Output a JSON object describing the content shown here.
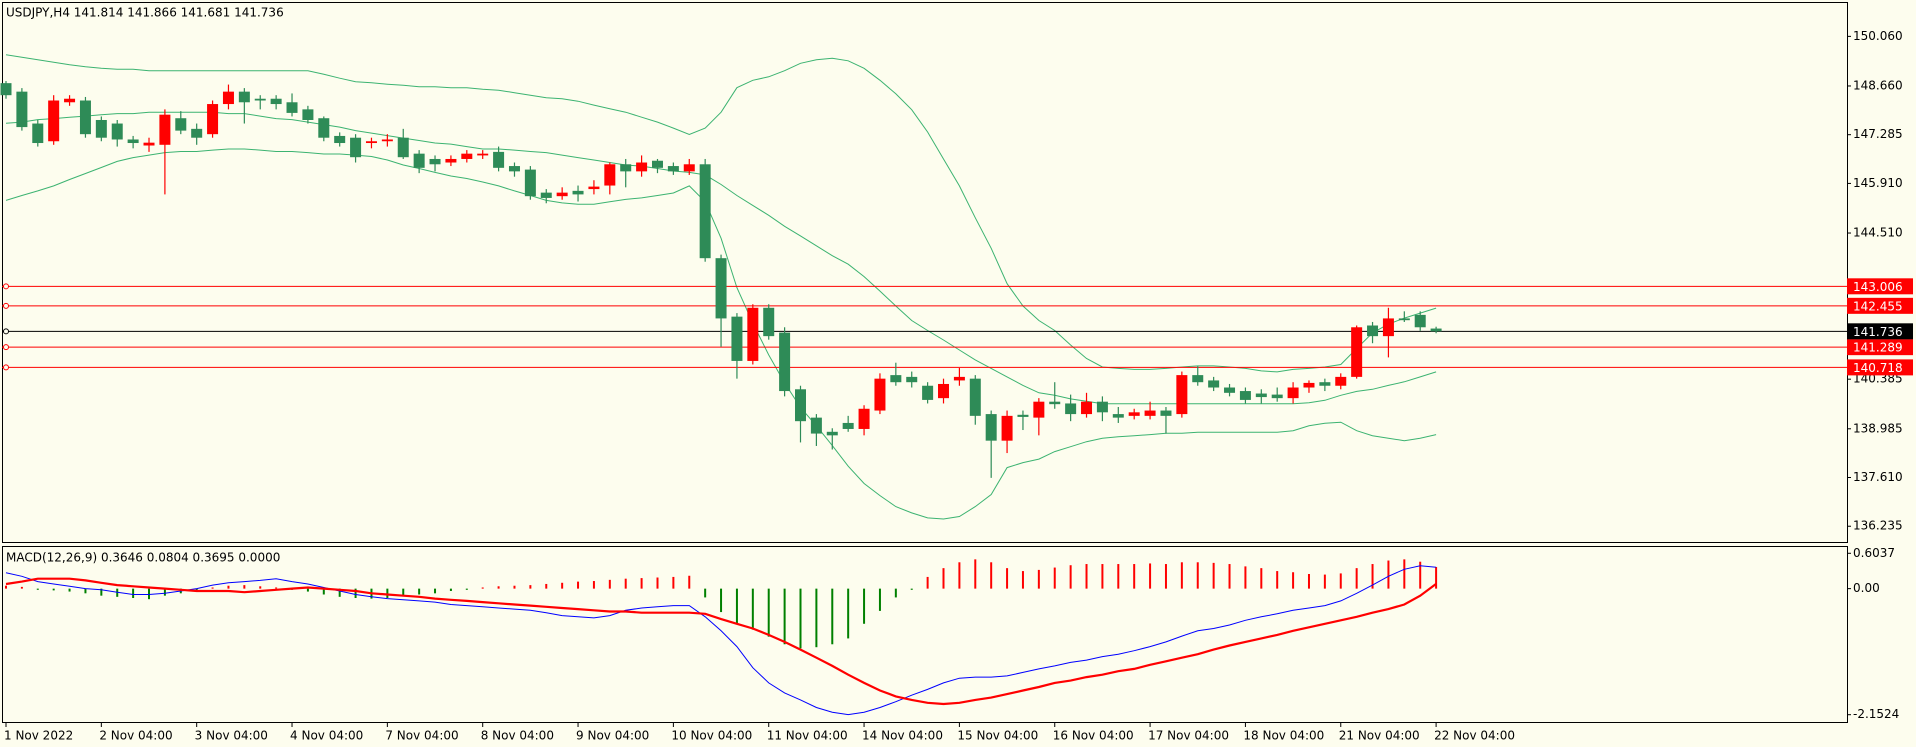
{
  "chart_data": [
    {
      "type": "candlestick",
      "title": "USDJPY,H4  141.814 141.866 141.681 141.736",
      "categories": [
        "1 Nov 2022",
        null,
        null,
        null,
        null,
        null,
        "2 Nov 04:00",
        null,
        null,
        null,
        null,
        null,
        "3 Nov 04:00",
        null,
        null,
        null,
        null,
        null,
        "4 Nov 04:00",
        null,
        null,
        null,
        null,
        null,
        "7 Nov 04:00",
        null,
        null,
        null,
        null,
        null,
        "8 Nov 04:00",
        null,
        null,
        null,
        null,
        null,
        "9 Nov 04:00",
        null,
        null,
        null,
        null,
        null,
        "10 Nov 04:00",
        null,
        null,
        null,
        null,
        null,
        "11 Nov 04:00",
        null,
        null,
        null,
        null,
        null,
        "14 Nov 04:00",
        null,
        null,
        null,
        null,
        null,
        "15 Nov 04:00",
        null,
        null,
        null,
        null,
        null,
        "16 Nov 04:00",
        null,
        null,
        null,
        null,
        null,
        "17 Nov 04:00",
        null,
        null,
        null,
        null,
        null,
        "18 Nov 04:00",
        null,
        null,
        null,
        null,
        null,
        "21 Nov 04:00",
        null,
        null,
        null,
        null,
        null,
        "22 Nov 04:00"
      ],
      "open": [
        148.74,
        148.5,
        147.6,
        147.1,
        148.2,
        148.25,
        147.7,
        147.6,
        147.15,
        146.98,
        147.0,
        147.75,
        147.45,
        147.3,
        148.15,
        148.5,
        148.3,
        148.3,
        148.2,
        148.0,
        147.75,
        147.25,
        147.2,
        147.05,
        147.1,
        147.2,
        146.75,
        146.6,
        146.5,
        146.6,
        146.7,
        146.8,
        146.4,
        146.3,
        145.65,
        145.55,
        145.7,
        145.75,
        145.85,
        146.45,
        146.25,
        146.55,
        146.4,
        146.25,
        146.45,
        143.8,
        142.15,
        140.9,
        142.4,
        141.7,
        140.1,
        139.3,
        138.9,
        139.15,
        138.98,
        139.5,
        140.5,
        140.45,
        140.2,
        139.85,
        140.35,
        140.4,
        139.4,
        138.65,
        139.38,
        139.3,
        139.75,
        139.7,
        139.4,
        139.75,
        139.4,
        139.35,
        139.35,
        139.5,
        139.4,
        140.5,
        140.35,
        140.15,
        140.05,
        139.98,
        139.95,
        139.85,
        140.15,
        140.3,
        140.2,
        140.45,
        141.9,
        141.6,
        142.1,
        142.2,
        141.814
      ],
      "high": [
        148.8,
        148.6,
        147.7,
        148.4,
        148.4,
        148.35,
        147.8,
        147.7,
        147.25,
        147.2,
        148.0,
        147.95,
        147.6,
        148.25,
        148.7,
        148.6,
        148.4,
        148.4,
        148.45,
        148.1,
        147.8,
        147.35,
        147.3,
        147.2,
        147.3,
        147.45,
        146.85,
        146.7,
        146.7,
        146.85,
        146.85,
        146.95,
        146.5,
        146.4,
        145.75,
        145.8,
        145.85,
        146.0,
        146.5,
        146.6,
        146.7,
        146.6,
        146.5,
        146.6,
        146.6,
        143.9,
        142.25,
        142.5,
        142.5,
        141.85,
        140.2,
        139.4,
        139.0,
        139.35,
        139.65,
        140.55,
        140.85,
        140.6,
        140.3,
        140.4,
        140.7,
        140.5,
        139.5,
        139.5,
        139.5,
        139.85,
        140.3,
        139.95,
        140.0,
        139.9,
        139.6,
        139.55,
        139.75,
        139.6,
        140.6,
        140.75,
        140.45,
        140.25,
        140.15,
        140.1,
        140.15,
        140.3,
        140.35,
        140.4,
        140.55,
        141.9,
        142.0,
        142.4,
        142.3,
        142.3,
        141.866
      ],
      "low": [
        148.3,
        147.4,
        146.95,
        147.0,
        148.1,
        147.2,
        147.1,
        146.95,
        146.9,
        146.8,
        145.6,
        147.3,
        147.0,
        147.2,
        148.0,
        147.6,
        148.0,
        148.0,
        147.8,
        147.6,
        147.1,
        146.95,
        146.5,
        146.9,
        146.95,
        146.6,
        146.2,
        146.25,
        146.4,
        146.5,
        146.6,
        146.25,
        146.1,
        145.45,
        145.35,
        145.45,
        145.4,
        145.6,
        145.6,
        145.8,
        146.1,
        146.2,
        146.15,
        146.15,
        143.7,
        141.3,
        140.4,
        140.8,
        141.5,
        139.9,
        138.6,
        138.5,
        138.4,
        138.9,
        138.8,
        139.4,
        140.2,
        140.15,
        139.7,
        139.7,
        140.2,
        139.1,
        137.6,
        138.3,
        138.95,
        138.8,
        139.55,
        139.2,
        139.3,
        139.2,
        139.15,
        139.25,
        139.25,
        138.85,
        139.3,
        140.2,
        140.05,
        139.9,
        139.7,
        139.7,
        139.75,
        139.7,
        140.0,
        140.05,
        140.1,
        140.4,
        141.4,
        141.0,
        142.0,
        141.75,
        141.681
      ],
      "close": [
        148.4,
        147.5,
        147.05,
        148.25,
        148.3,
        147.3,
        147.2,
        147.15,
        147.05,
        147.06,
        147.85,
        147.4,
        147.2,
        148.15,
        148.5,
        148.2,
        148.25,
        148.15,
        147.9,
        147.7,
        147.2,
        147.05,
        146.65,
        147.1,
        147.15,
        146.65,
        146.35,
        146.45,
        146.6,
        146.75,
        146.75,
        146.35,
        146.25,
        145.55,
        145.5,
        145.65,
        145.6,
        145.82,
        146.45,
        146.25,
        146.5,
        146.35,
        146.25,
        146.45,
        143.8,
        142.1,
        140.9,
        142.4,
        141.6,
        140.05,
        139.2,
        138.85,
        138.8,
        138.98,
        139.55,
        140.4,
        140.3,
        140.3,
        139.8,
        140.25,
        140.45,
        139.35,
        138.65,
        139.35,
        139.32,
        139.75,
        139.68,
        139.4,
        139.75,
        139.45,
        139.3,
        139.45,
        139.5,
        139.35,
        140.5,
        140.3,
        140.15,
        140.0,
        139.8,
        139.88,
        139.85,
        140.15,
        140.28,
        140.2,
        140.45,
        141.85,
        141.6,
        142.1,
        142.05,
        141.85,
        141.736
      ],
      "up_color": "#ff0000",
      "down_color": "#2e8b57",
      "bands": {
        "color": "#3cb371",
        "upper": [
          149.54,
          149.47,
          149.4,
          149.33,
          149.26,
          149.2,
          149.16,
          149.13,
          149.13,
          149.09,
          149.09,
          149.09,
          149.09,
          149.09,
          149.09,
          149.09,
          149.09,
          149.09,
          149.09,
          149.09,
          148.99,
          148.88,
          148.78,
          148.75,
          148.71,
          148.68,
          148.64,
          148.64,
          148.61,
          148.61,
          148.57,
          148.54,
          148.47,
          148.4,
          148.33,
          148.3,
          148.23,
          148.12,
          148.02,
          147.92,
          147.78,
          147.64,
          147.47,
          147.29,
          147.47,
          147.92,
          148.61,
          148.82,
          148.92,
          149.09,
          149.3,
          149.4,
          149.44,
          149.37,
          149.16,
          148.82,
          148.44,
          147.99,
          147.36,
          146.6,
          145.84,
          144.94,
          144.08,
          143.08,
          142.45,
          142.04,
          141.76,
          141.35,
          140.97,
          140.73,
          140.69,
          140.66,
          140.66,
          140.69,
          140.73,
          140.76,
          140.76,
          140.73,
          140.69,
          140.62,
          140.59,
          140.66,
          140.69,
          140.73,
          140.8,
          141.25,
          141.69,
          141.94,
          142.11,
          142.25,
          142.39
        ],
        "middle": [
          147.61,
          147.64,
          147.71,
          147.74,
          147.78,
          147.81,
          147.85,
          147.88,
          147.88,
          147.92,
          147.92,
          147.92,
          147.92,
          147.92,
          147.88,
          147.88,
          147.81,
          147.74,
          147.71,
          147.64,
          147.57,
          147.5,
          147.4,
          147.33,
          147.26,
          147.19,
          147.12,
          147.05,
          147.02,
          146.95,
          146.88,
          146.88,
          146.85,
          146.81,
          146.78,
          146.71,
          146.64,
          146.57,
          146.5,
          146.43,
          146.4,
          146.33,
          146.26,
          146.22,
          146.15,
          145.88,
          145.57,
          145.29,
          145.01,
          144.7,
          144.43,
          144.15,
          143.87,
          143.63,
          143.28,
          142.87,
          142.45,
          142.04,
          141.76,
          141.49,
          141.21,
          140.93,
          140.69,
          140.45,
          140.21,
          140.0,
          139.93,
          139.83,
          139.76,
          139.69,
          139.69,
          139.69,
          139.69,
          139.69,
          139.69,
          139.69,
          139.69,
          139.69,
          139.69,
          139.69,
          139.69,
          139.69,
          139.72,
          139.79,
          139.93,
          140.04,
          140.1,
          140.21,
          140.31,
          140.45,
          140.59
        ],
        "lower": [
          145.43,
          145.57,
          145.7,
          145.84,
          146.02,
          146.19,
          146.36,
          146.53,
          146.64,
          146.71,
          146.78,
          146.81,
          146.81,
          146.85,
          146.88,
          146.88,
          146.85,
          146.81,
          146.81,
          146.78,
          146.74,
          146.74,
          146.71,
          146.67,
          146.57,
          146.43,
          146.33,
          146.22,
          146.12,
          146.05,
          145.95,
          145.84,
          145.7,
          145.57,
          145.43,
          145.36,
          145.32,
          145.32,
          145.39,
          145.46,
          145.5,
          145.57,
          145.64,
          145.84,
          145.39,
          144.36,
          142.97,
          141.97,
          141.07,
          140.28,
          139.59,
          139.07,
          138.51,
          137.93,
          137.44,
          137.1,
          136.79,
          136.61,
          136.47,
          136.44,
          136.51,
          136.79,
          137.13,
          137.89,
          138.03,
          138.13,
          138.34,
          138.48,
          138.62,
          138.72,
          138.76,
          138.79,
          138.82,
          138.86,
          138.86,
          138.89,
          138.89,
          138.89,
          138.89,
          138.89,
          138.89,
          138.93,
          139.07,
          139.14,
          139.17,
          138.93,
          138.79,
          138.72,
          138.65,
          138.72,
          138.82
        ]
      },
      "levels": [
        {
          "value": 143.006,
          "color": "#ff0000"
        },
        {
          "value": 142.455,
          "color": "#ff0000"
        },
        {
          "value": 141.289,
          "color": "#ff0000"
        },
        {
          "value": 140.718,
          "color": "#ff0000"
        },
        {
          "value": 141.736,
          "color": "#000000"
        }
      ],
      "ylim": [
        135.79,
        151.03
      ],
      "yticks": [
        {
          "value": 150.06,
          "label": "150.060"
        },
        {
          "value": 148.66,
          "label": "148.660"
        },
        147.285,
        {
          "value": 145.91,
          "label": "145.910"
        },
        {
          "value": 144.51,
          "label": "144.510"
        },
        140.385,
        138.985,
        {
          "value": 137.61,
          "label": "137.610"
        },
        136.235
      ]
    },
    {
      "type": "macd",
      "title": "MACD(12,26,9) 0.3646 0.0804 0.3695 0.0000",
      "values": [
        0.05,
        0.03,
        -0.02,
        -0.03,
        -0.05,
        -0.08,
        -0.12,
        -0.14,
        -0.16,
        -0.18,
        -0.12,
        -0.08,
        -0.05,
        0.02,
        0.05,
        0.06,
        0.04,
        0.02,
        -0.02,
        -0.05,
        -0.1,
        -0.14,
        -0.16,
        -0.17,
        -0.16,
        -0.12,
        -0.1,
        -0.08,
        -0.04,
        -0.02,
        0.02,
        0.04,
        0.05,
        0.06,
        0.08,
        0.1,
        0.12,
        0.13,
        0.15,
        0.17,
        0.18,
        0.19,
        0.2,
        0.22,
        -0.15,
        -0.4,
        -0.6,
        -0.7,
        -0.82,
        -0.95,
        -1.02,
        -1.0,
        -0.95,
        -0.85,
        -0.6,
        -0.38,
        -0.15,
        -0.02,
        0.2,
        0.35,
        0.45,
        0.5,
        0.45,
        0.35,
        0.3,
        0.32,
        0.36,
        0.4,
        0.42,
        0.42,
        0.42,
        0.42,
        0.43,
        0.42,
        0.45,
        0.45,
        0.44,
        0.42,
        0.38,
        0.35,
        0.3,
        0.28,
        0.25,
        0.24,
        0.26,
        0.35,
        0.42,
        0.48,
        0.5,
        0.46,
        0.3695
      ],
      "up_color": "#ff0000",
      "down_color": "#008000",
      "series": [
        {
          "color": "#0000ff",
          "values": [
            0.27,
            0.21,
            0.12,
            0.08,
            0.04,
            0,
            -0.02,
            -0.06,
            -0.1,
            -0.1,
            -0.08,
            -0.04,
            0,
            0.06,
            0.1,
            0.12,
            0.14,
            0.17,
            0.12,
            0.08,
            0.02,
            -0.04,
            -0.1,
            -0.14,
            -0.17,
            -0.19,
            -0.21,
            -0.23,
            -0.27,
            -0.29,
            -0.31,
            -0.33,
            -0.35,
            -0.37,
            -0.41,
            -0.46,
            -0.48,
            -0.5,
            -0.46,
            -0.37,
            -0.33,
            -0.31,
            -0.29,
            -0.29,
            -0.48,
            -0.72,
            -0.99,
            -1.35,
            -1.61,
            -1.78,
            -1.9,
            -2.03,
            -2.11,
            -2.15,
            -2.11,
            -2.03,
            -1.93,
            -1.82,
            -1.72,
            -1.61,
            -1.53,
            -1.51,
            -1.51,
            -1.49,
            -1.43,
            -1.37,
            -1.32,
            -1.26,
            -1.22,
            -1.16,
            -1.12,
            -1.06,
            -0.99,
            -0.91,
            -0.81,
            -0.72,
            -0.68,
            -0.62,
            -0.54,
            -0.48,
            -0.43,
            -0.37,
            -0.33,
            -0.29,
            -0.21,
            -0.08,
            0.06,
            0.21,
            0.33,
            0.39,
            0.3646
          ]
        },
        {
          "color": "#ff0000",
          "values": [
            0.08,
            0.12,
            0.17,
            0.17,
            0.17,
            0.14,
            0.1,
            0.06,
            0.04,
            0.02,
            0,
            -0.02,
            -0.04,
            -0.04,
            -0.04,
            -0.06,
            -0.04,
            -0.02,
            0,
            0.02,
            0,
            -0.02,
            -0.04,
            -0.08,
            -0.1,
            -0.12,
            -0.14,
            -0.17,
            -0.19,
            -0.21,
            -0.23,
            -0.25,
            -0.27,
            -0.29,
            -0.31,
            -0.33,
            -0.35,
            -0.37,
            -0.39,
            -0.39,
            -0.41,
            -0.41,
            -0.41,
            -0.41,
            -0.43,
            -0.52,
            -0.6,
            -0.68,
            -0.79,
            -0.91,
            -1.04,
            -1.18,
            -1.32,
            -1.47,
            -1.61,
            -1.74,
            -1.84,
            -1.9,
            -1.95,
            -1.97,
            -1.95,
            -1.9,
            -1.86,
            -1.8,
            -1.74,
            -1.68,
            -1.61,
            -1.57,
            -1.51,
            -1.47,
            -1.41,
            -1.37,
            -1.3,
            -1.24,
            -1.18,
            -1.12,
            -1.04,
            -0.97,
            -0.91,
            -0.85,
            -0.79,
            -0.72,
            -0.66,
            -0.6,
            -0.54,
            -0.48,
            -0.41,
            -0.35,
            -0.27,
            -0.12,
            0.0804
          ]
        }
      ],
      "ylim": [
        -2.277,
        0.728
      ],
      "yticks": [
        0.6037,
        {
          "value": 0,
          "label": "0.00"
        },
        -2.1524
      ]
    }
  ]
}
